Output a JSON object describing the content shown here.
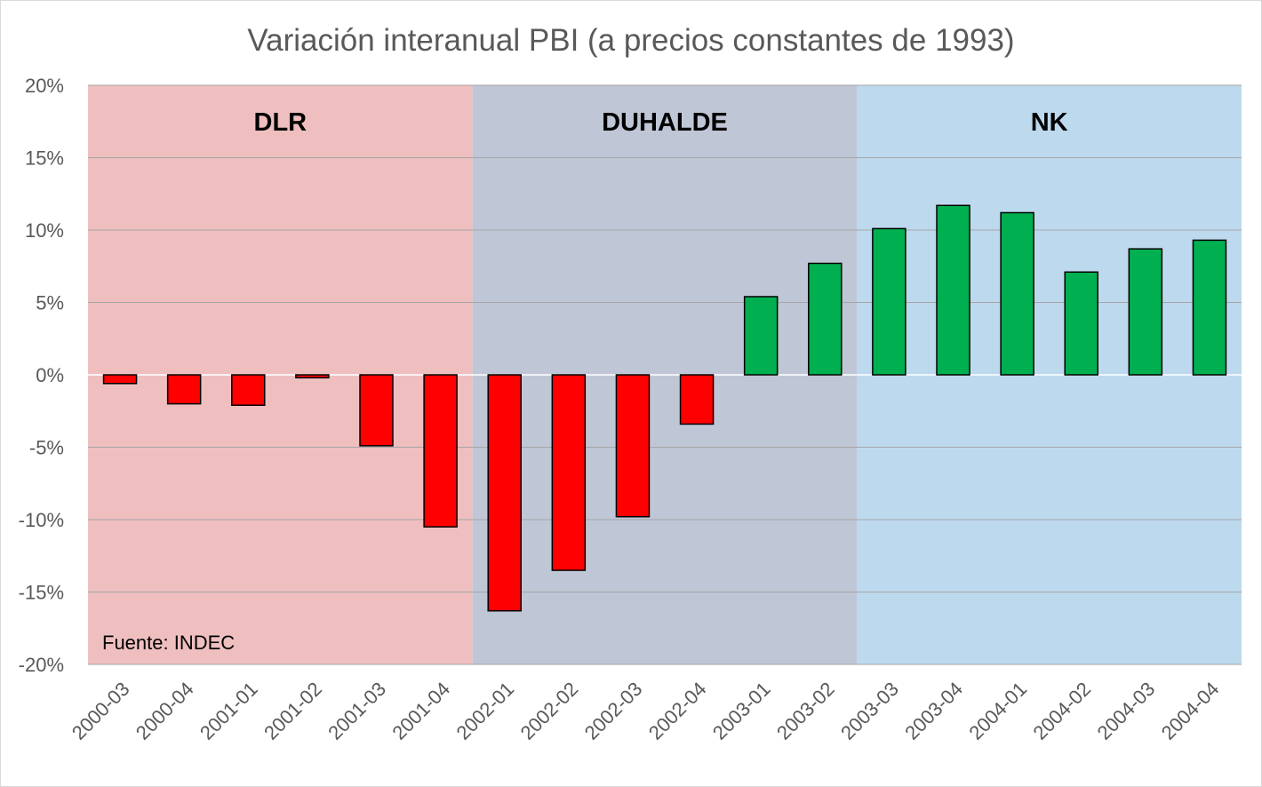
{
  "chart_data": {
    "type": "bar",
    "title": "Variación interanual PBI (a precios constantes de 1993)",
    "xlabel": "",
    "ylabel": "",
    "ylim": [
      -20,
      20
    ],
    "ytick_step": 5,
    "ytick_labels": [
      "20%",
      "15%",
      "10%",
      "5%",
      "0%",
      "-5%",
      "-10%",
      "-15%",
      "-20%"
    ],
    "ytick_values": [
      20,
      15,
      10,
      5,
      0,
      -5,
      -10,
      -15,
      -20
    ],
    "grid": true,
    "categories": [
      "2000-03",
      "2000-04",
      "2001-01",
      "2001-02",
      "2001-03",
      "2001-04",
      "2002-01",
      "2002-02",
      "2002-03",
      "2002-04",
      "2003-01",
      "2003-02",
      "2003-03",
      "2003-04",
      "2004-01",
      "2004-02",
      "2004-03",
      "2004-04"
    ],
    "series": [
      {
        "name": "Variación interanual PBI",
        "values": [
          -0.6,
          -2.0,
          -2.1,
          -0.2,
          -4.9,
          -10.5,
          -16.3,
          -13.5,
          -9.8,
          -3.4,
          5.4,
          7.7,
          10.1,
          11.7,
          11.2,
          7.1,
          8.7,
          9.3
        ]
      }
    ],
    "colors": {
      "positive": "#00b050",
      "negative": "#ff0000"
    },
    "regions": [
      {
        "label": "DLR",
        "start_index": 0,
        "end_index": 5,
        "color": "#efbfc0"
      },
      {
        "label": "DUHALDE",
        "start_index": 6,
        "end_index": 11,
        "color": "#bfc6d6"
      },
      {
        "label": "NK",
        "start_index": 12,
        "end_index": 17,
        "color": "#bdd9ee"
      }
    ],
    "source_note": "Fuente: INDEC"
  }
}
